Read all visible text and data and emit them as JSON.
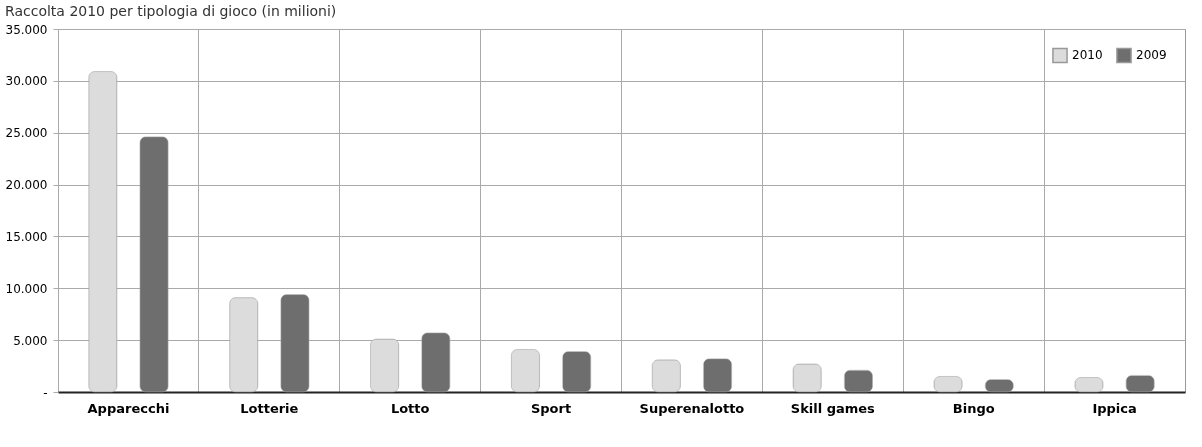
{
  "chart_data": {
    "type": "bar",
    "title": "Raccolta 2010 per tipologia di gioco (in milioni)",
    "categories": [
      "Apparecchi",
      "Lotterie",
      "Lotto",
      "Sport",
      "Superenalotto",
      "Skill games",
      "Bingo",
      "Ippica"
    ],
    "series": [
      {
        "name": "2010",
        "color": "#dcdcdc",
        "values": [
          30900,
          9100,
          5100,
          4100,
          3100,
          2700,
          1500,
          1400
        ]
      },
      {
        "name": "2009",
        "color": "#6e6e6e",
        "values": [
          24600,
          9400,
          5700,
          3900,
          3200,
          2100,
          1200,
          1600
        ]
      }
    ],
    "ylim": [
      0,
      35000
    ],
    "yticks": [
      {
        "value": 0,
        "label": "-"
      },
      {
        "value": 5000,
        "label": "5.000"
      },
      {
        "value": 10000,
        "label": "10.000"
      },
      {
        "value": 15000,
        "label": "15.000"
      },
      {
        "value": 20000,
        "label": "20.000"
      },
      {
        "value": 25000,
        "label": "25.000"
      },
      {
        "value": 30000,
        "label": "30.000"
      },
      {
        "value": 35000,
        "label": "35.000"
      }
    ],
    "grid": true,
    "legend": "top right"
  }
}
